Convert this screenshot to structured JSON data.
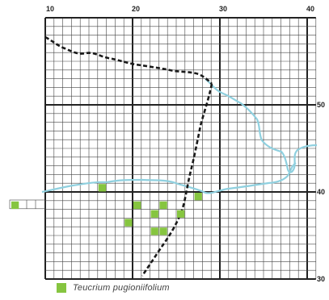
{
  "map": {
    "axis_top": [
      "10",
      "20",
      "30",
      "40"
    ],
    "axis_right": [
      "50",
      "40",
      "30"
    ],
    "colors": {
      "background": "#ffffff",
      "grid_minor": "#444444",
      "grid_major": "#222222",
      "coast_line": "#1a1a1a",
      "water": "#8fd0df",
      "occupied_cell": "#86c540"
    },
    "features": [
      "dashed-coastline",
      "dashed-boundary",
      "river-lines",
      "occupied-cells"
    ]
  },
  "legend": {
    "species": "Teucrium pugioniifolium",
    "color": "#86c540"
  }
}
